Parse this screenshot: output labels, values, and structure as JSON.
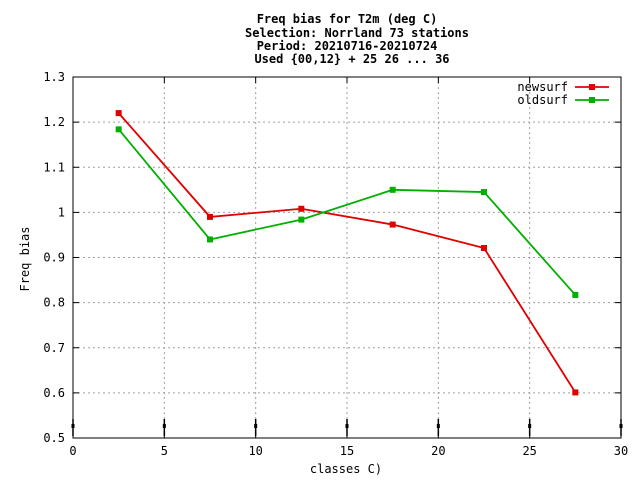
{
  "chart_data": {
    "type": "line",
    "title": [
      "Freq bias  for T2m (deg C)",
      "Selection: Norrland     73 stations",
      "Period: 20210716-20210724",
      "Used {00,12} + 25 26 ... 36"
    ],
    "xlabel": "classes C)",
    "ylabel": "Freq bias",
    "xlim": [
      0,
      30
    ],
    "ylim": [
      0.5,
      1.3
    ],
    "xticks": [
      "0",
      "5",
      "10",
      "15",
      "20",
      "25",
      "30"
    ],
    "yticks": [
      "0.5",
      "0.6",
      "0.7",
      "0.8",
      "0.9",
      "1",
      "1.1",
      "1.2",
      "1.3"
    ],
    "grid": true,
    "legend_position": "top-right",
    "x": [
      2.5,
      7.5,
      12.5,
      17.5,
      22.5,
      27.5
    ],
    "series": [
      {
        "name": "newsurf",
        "color": "#e00000",
        "values": [
          1.22,
          0.99,
          1.008,
          0.973,
          0.921,
          0.601
        ]
      },
      {
        "name": "oldsurf",
        "color": "#00b000",
        "values": [
          1.184,
          0.94,
          0.984,
          1.05,
          1.045,
          0.817
        ]
      }
    ],
    "count_marker_x": [
      0,
      5,
      10,
      15,
      20,
      25,
      30
    ]
  }
}
